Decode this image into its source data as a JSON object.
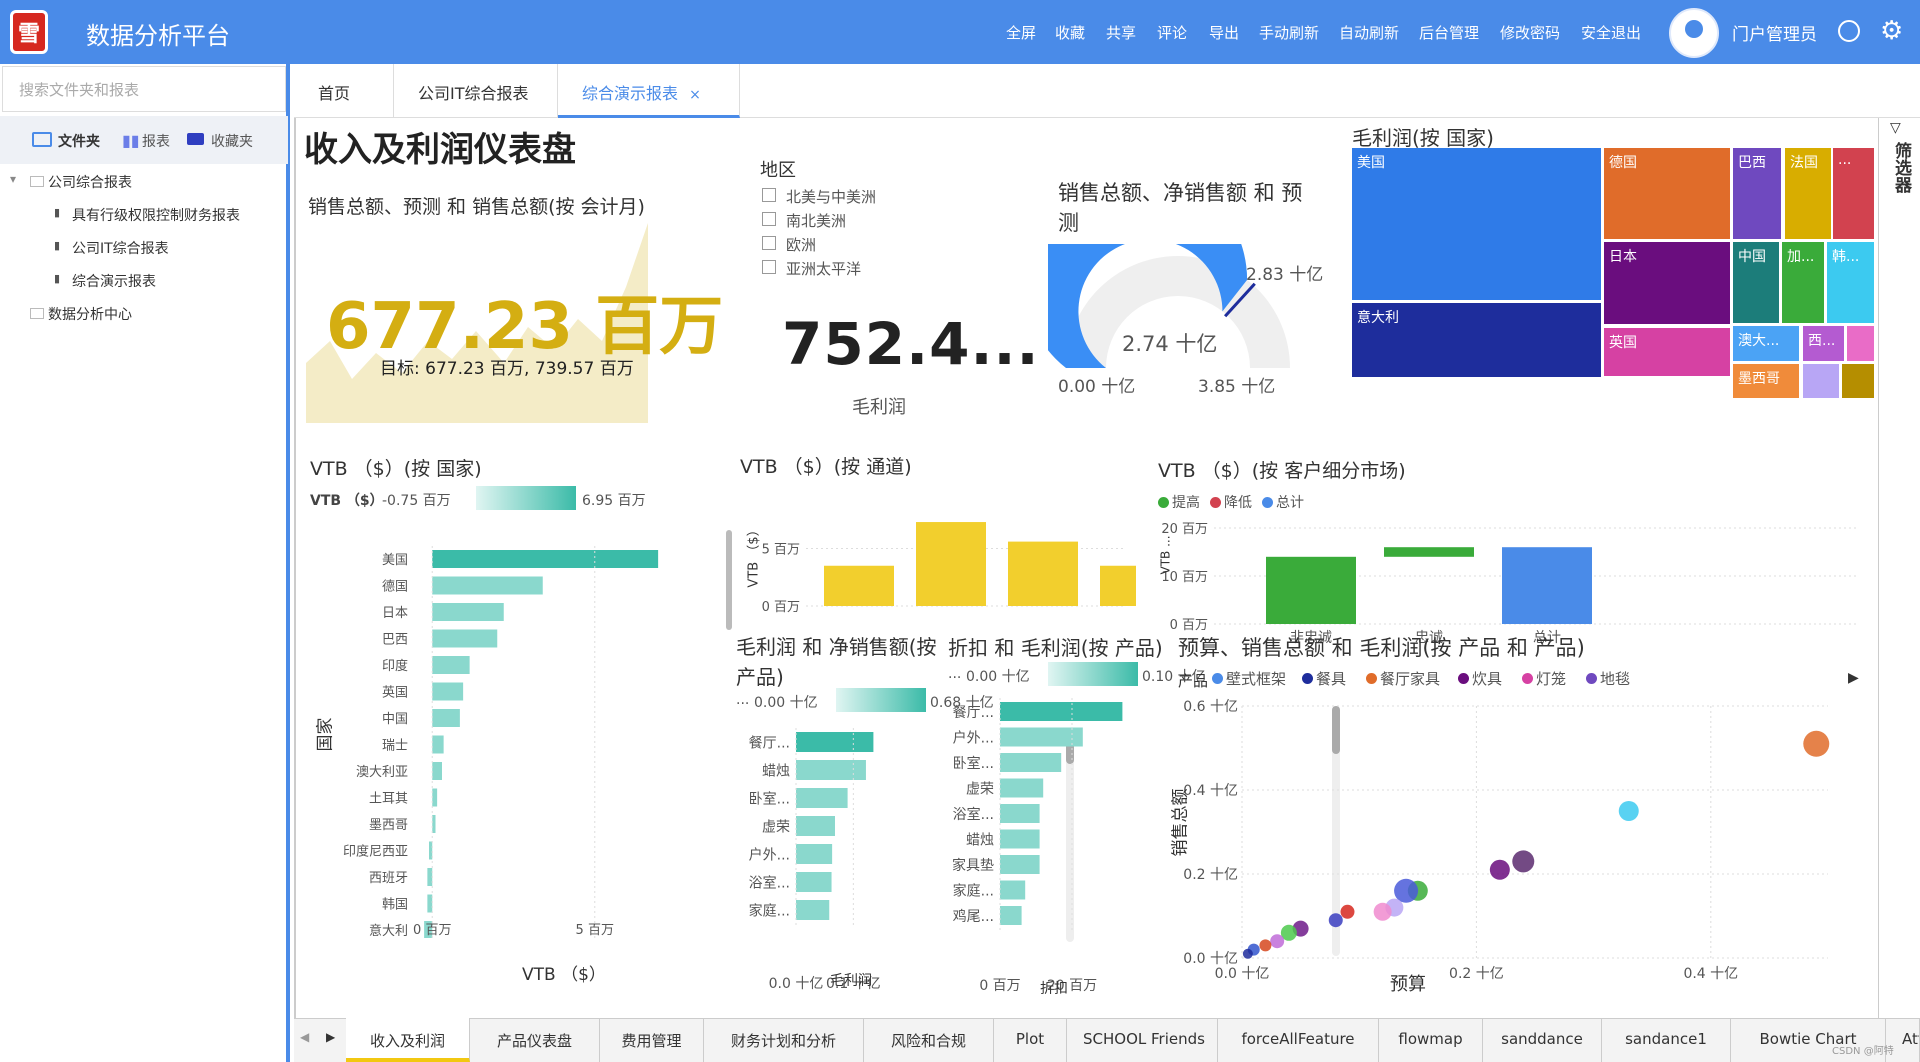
{
  "app": {
    "logo_char": "雪",
    "title": "数据分析平台",
    "nav": [
      "全屏",
      "收藏",
      "共享",
      "评论",
      "导出",
      "手动刷新",
      "自动刷新",
      "后台管理",
      "修改密码",
      "安全退出"
    ],
    "user": "门户管理员"
  },
  "sidebar": {
    "search_placeholder": "搜索文件夹和报表",
    "tabs": [
      "文件夹",
      "报表",
      "收藏夹"
    ],
    "tree": [
      {
        "label": "公司综合报表",
        "level": 0
      },
      {
        "label": "具有行级权限控制财务报表",
        "level": 1
      },
      {
        "label": "公司IT综合报表",
        "level": 1
      },
      {
        "label": "综合演示报表",
        "level": 1
      },
      {
        "label": "数据分析中心",
        "level": 0
      }
    ]
  },
  "tabs": [
    {
      "label": "首页"
    },
    {
      "label": "公司IT综合报表"
    },
    {
      "label": "综合演示报表",
      "active": true,
      "close": "×"
    }
  ],
  "dashboard": {
    "title": "收入及利润仪表盘",
    "kpi1": {
      "title": "销售总额、预测 和 销售总额(按 会计月)",
      "value": "677.23 百万",
      "target": "目标: 677.23 百万, 739.57 百万"
    },
    "slicer": {
      "title": "地区",
      "options": [
        "北美与中美洲",
        "南北美洲",
        "欧洲",
        "亚洲太平洋"
      ]
    },
    "card": {
      "value": "752.4...",
      "label": "毛利润"
    },
    "gauge": {
      "title": "销售总额、净销售额 和 预测",
      "value": "2.74 十亿",
      "min": "0.00 十亿",
      "max": "3.85 十亿",
      "target": "2.83 十亿",
      "value_num": 2.74,
      "min_num": 0,
      "max_num": 3.85,
      "target_num": 2.83
    },
    "treemap": {
      "title": "毛利润(按 国家)",
      "items": [
        {
          "label": "美国",
          "color": "#2f7be8"
        },
        {
          "label": "德国",
          "color": "#e06c2a"
        },
        {
          "label": "巴西",
          "color": "#6f49bf"
        },
        {
          "label": "法国",
          "color": "#d8ad00"
        },
        {
          "label": "...",
          "color": "#d2424f"
        },
        {
          "label": "日本",
          "color": "#6a0d7e"
        },
        {
          "label": "中国",
          "color": "#1c7d7a"
        },
        {
          "label": "加...",
          "color": "#3aab3a"
        },
        {
          "label": "韩...",
          "color": "#3ccaf0"
        },
        {
          "label": "意大利",
          "color": "#1e2d9c"
        },
        {
          "label": "英国",
          "color": "#d641a3"
        },
        {
          "label": "澳大...",
          "color": "#4ba3f5"
        },
        {
          "label": "西...",
          "color": "#b45bd1"
        },
        {
          "label": "墨西哥",
          "color": "#f08b3a"
        },
        {
          "label": "",
          "color": "#e96cc7"
        },
        {
          "label": "",
          "color": "#b8a6f5"
        },
        {
          "label": "",
          "color": "#b58e00"
        }
      ]
    },
    "filter_label": "筛选器"
  },
  "chart_data": [
    {
      "type": "bar",
      "title": "VTB （$）(按 国家)",
      "xlabel": "VTB （$）",
      "ylabel": "国家",
      "legend_label": "VTB （$）",
      "legend_min": "-0.75 百万",
      "legend_max": "6.95 百万",
      "categories": [
        "美国",
        "德国",
        "日本",
        "巴西",
        "印度",
        "英国",
        "中国",
        "瑞士",
        "澳大利亚",
        "土耳其",
        "墨西哥",
        "印度尼西亚",
        "西班牙",
        "韩国",
        "意大利"
      ],
      "values": [
        6.95,
        3.4,
        2.2,
        2.0,
        1.15,
        0.95,
        0.85,
        0.35,
        0.3,
        0.15,
        0.1,
        -0.1,
        -0.15,
        -0.15,
        -0.25
      ],
      "xticks": [
        "0 百万",
        "5 百万"
      ],
      "xlim": [
        -0.5,
        7.5
      ]
    },
    {
      "type": "bar",
      "title": "VTB （$）(按 通道)",
      "ylabel": "VTB （$）",
      "yticks": [
        "5 百万",
        "0 百万"
      ],
      "values": [
        3.5,
        7.3,
        5.6,
        3.5
      ],
      "ylim": [
        0,
        8
      ],
      "color": "#f2cf2d"
    },
    {
      "type": "bar",
      "title": "VTB （$）(按 客户细分市场)",
      "legend": [
        {
          "name": "提高",
          "color": "#3aab3a"
        },
        {
          "name": "降低",
          "color": "#d2424f"
        },
        {
          "name": "总计",
          "color": "#4a8be8"
        }
      ],
      "categories": [
        "非忠诚",
        "忠诚",
        "总计"
      ],
      "values": [
        14,
        2,
        16
      ],
      "ylim": [
        0,
        20
      ],
      "yticks": [
        "20 百万",
        "10 百万",
        "0 百万"
      ],
      "ylabel": "VTB ..."
    },
    {
      "type": "bar",
      "title": "毛利润 和 净销售额(按 产品)",
      "xlabel": "毛利润",
      "legend_label": "...",
      "legend_min": "0.00 十亿",
      "legend_max": "0.68 十亿",
      "categories": [
        "餐厅...",
        "蜡烛",
        "卧室...",
        "虚荣",
        "户外...",
        "浴室...",
        "家庭..."
      ],
      "values": [
        0.135,
        0.122,
        0.09,
        0.068,
        0.063,
        0.062,
        0.058
      ],
      "xticks": [
        "0.0 十亿",
        "0.1 十亿"
      ],
      "xlim": [
        0,
        0.15
      ]
    },
    {
      "type": "bar",
      "title": "折扣 和 毛利润(按 产品)",
      "xlabel": "折扣",
      "legend_label": "...",
      "legend_min": "0.00 十亿",
      "legend_max": "0.10 十亿",
      "categories": [
        "餐厅...",
        "户外...",
        "卧室...",
        "虚荣",
        "浴室...",
        "蜡烛",
        "家具垫",
        "家庭...",
        "鸡尾..."
      ],
      "values": [
        34,
        23,
        17,
        12,
        11,
        11,
        11,
        7,
        6
      ],
      "xticks": [
        "0 百万",
        "20 百万"
      ],
      "xlim": [
        0,
        40
      ]
    },
    {
      "type": "scatter",
      "title": "预算、销售总额 和 毛利润(按 产品 和 产品)",
      "xlabel": "预算",
      "ylabel": "销售总额",
      "legend_title": "产品",
      "legend": [
        {
          "name": "壁式框架",
          "color": "#4a8be8"
        },
        {
          "name": "餐具",
          "color": "#1e2d9c"
        },
        {
          "name": "餐厅家具",
          "color": "#e06c2a"
        },
        {
          "name": "炊具",
          "color": "#6a0d7e"
        },
        {
          "name": "灯笼",
          "color": "#d641a3"
        },
        {
          "name": "地毯",
          "color": "#6f49bf"
        }
      ],
      "xticks": [
        "0.0 十亿",
        "0.2 十亿",
        "0.4 十亿"
      ],
      "yticks": [
        "0.6 十亿",
        "0.4 十亿",
        "0.2 十亿",
        "0.0 十亿"
      ],
      "xlim": [
        0,
        0.5
      ],
      "ylim": [
        0,
        0.6
      ],
      "points": [
        {
          "x": 0.49,
          "y": 0.51,
          "color": "#e06c2a",
          "r": 13
        },
        {
          "x": 0.33,
          "y": 0.35,
          "color": "#3ccaf0",
          "r": 10
        },
        {
          "x": 0.24,
          "y": 0.23,
          "color": "#5b2a6e",
          "r": 11
        },
        {
          "x": 0.22,
          "y": 0.21,
          "color": "#6a0d7e",
          "r": 10
        },
        {
          "x": 0.15,
          "y": 0.16,
          "color": "#3aab3a",
          "r": 10
        },
        {
          "x": 0.14,
          "y": 0.16,
          "color": "#4a5bd9",
          "r": 12
        },
        {
          "x": 0.13,
          "y": 0.12,
          "color": "#b8a6f5",
          "r": 9
        },
        {
          "x": 0.12,
          "y": 0.11,
          "color": "#f08bcf",
          "r": 9
        },
        {
          "x": 0.09,
          "y": 0.11,
          "color": "#d6281f",
          "r": 7
        },
        {
          "x": 0.08,
          "y": 0.09,
          "color": "#3a3dbf",
          "r": 7
        },
        {
          "x": 0.05,
          "y": 0.07,
          "color": "#6f1b8a",
          "r": 8
        },
        {
          "x": 0.04,
          "y": 0.06,
          "color": "#4cc94c",
          "r": 8
        },
        {
          "x": 0.03,
          "y": 0.04,
          "color": "#c06cd8",
          "r": 7
        },
        {
          "x": 0.02,
          "y": 0.03,
          "color": "#d6481f",
          "r": 6
        },
        {
          "x": 0.01,
          "y": 0.02,
          "color": "#3355cc",
          "r": 6
        },
        {
          "x": 0.005,
          "y": 0.01,
          "color": "#1e2d9c",
          "r": 5
        }
      ]
    }
  ],
  "bottom_tabs": [
    "收入及利润",
    "产品仪表盘",
    "费用管理",
    "财务计划和分析",
    "风险和合规",
    "Plot",
    "SCHOOL Friends",
    "forceAllFeature",
    "flowmap",
    "sanddance",
    "sandance1",
    "Bowtie Chart",
    "Att"
  ],
  "watermark": "CSDN @阿特"
}
